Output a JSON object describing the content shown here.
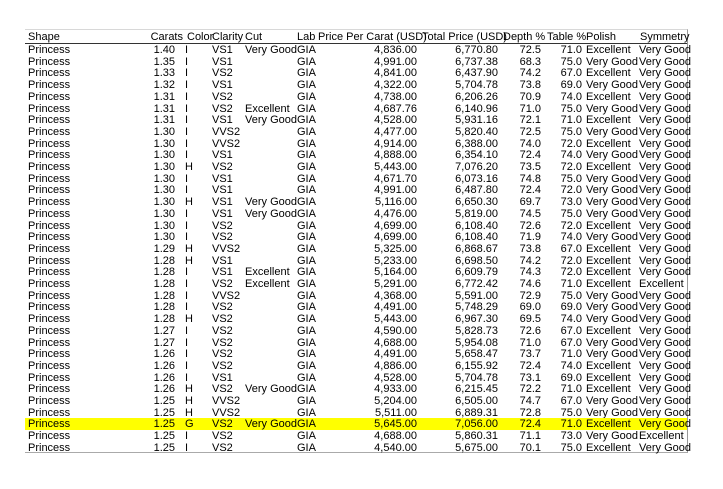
{
  "colors": {
    "highlight": "#ffff00",
    "header_rule": "#333333"
  },
  "header": {
    "shape": "Shape",
    "carats": "Carats",
    "color": "Color",
    "clarity": "Clarity",
    "cut": "Cut",
    "lab": "Lab",
    "price_per_carat": "Price Per Carat (USD)",
    "total_price": "Total Price (USD)",
    "depth": "Depth %",
    "table": "Table %",
    "polish": "Polish",
    "symmetry": "Symmetry"
  },
  "highlighted_row": 32,
  "rows": [
    [
      "Princess",
      "1.40",
      "I",
      "VS1",
      "Very Good",
      "GIA",
      "4,836.00",
      "6,770.80",
      "72.5",
      "71.0",
      "Excellent",
      "Very Good"
    ],
    [
      "Princess",
      "1.35",
      "I",
      "VS1",
      "",
      "GIA",
      "4,991.00",
      "6,737.38",
      "68.3",
      "75.0",
      "Very Good",
      "Very Good"
    ],
    [
      "Princess",
      "1.33",
      "I",
      "VS2",
      "",
      "GIA",
      "4,841.00",
      "6,437.90",
      "74.2",
      "67.0",
      "Excellent",
      "Very Good"
    ],
    [
      "Princess",
      "1.32",
      "I",
      "VS1",
      "",
      "GIA",
      "4,322.00",
      "5,704.78",
      "73.8",
      "69.0",
      "Very Good",
      "Very Good"
    ],
    [
      "Princess",
      "1.31",
      "I",
      "VS2",
      "",
      "GIA",
      "4,738.00",
      "6,206.26",
      "70.9",
      "74.0",
      "Excellent",
      "Very Good"
    ],
    [
      "Princess",
      "1.31",
      "I",
      "VS2",
      "Excellent",
      "GIA",
      "4,687.76",
      "6,140.96",
      "71.0",
      "75.0",
      "Very Good",
      "Very Good"
    ],
    [
      "Princess",
      "1.31",
      "I",
      "VS1",
      "Very Good",
      "GIA",
      "4,528.00",
      "5,931.16",
      "72.1",
      "71.0",
      "Excellent",
      "Very Good"
    ],
    [
      "Princess",
      "1.30",
      "I",
      "VVS2",
      "",
      "GIA",
      "4,477.00",
      "5,820.40",
      "72.5",
      "75.0",
      "Very Good",
      "Very Good"
    ],
    [
      "Princess",
      "1.30",
      "I",
      "VVS2",
      "",
      "GIA",
      "4,914.00",
      "6,388.00",
      "74.0",
      "72.0",
      "Excellent",
      "Very Good"
    ],
    [
      "Princess",
      "1.30",
      "I",
      "VS1",
      "",
      "GIA",
      "4,888.00",
      "6,354.10",
      "72.4",
      "74.0",
      "Very Good",
      "Very Good"
    ],
    [
      "Princess",
      "1.30",
      "H",
      "VS2",
      "",
      "GIA",
      "5,443.00",
      "7,076.20",
      "73.5",
      "72.0",
      "Excellent",
      "Very Good"
    ],
    [
      "Princess",
      "1.30",
      "I",
      "VS1",
      "",
      "GIA",
      "4,671.70",
      "6,073.16",
      "74.8",
      "75.0",
      "Very Good",
      "Very Good"
    ],
    [
      "Princess",
      "1.30",
      "I",
      "VS1",
      "",
      "GIA",
      "4,991.00",
      "6,487.80",
      "72.4",
      "72.0",
      "Very Good",
      "Very Good"
    ],
    [
      "Princess",
      "1.30",
      "H",
      "VS1",
      "Very Good",
      "GIA",
      "5,116.00",
      "6,650.30",
      "69.7",
      "73.0",
      "Very Good",
      "Very Good"
    ],
    [
      "Princess",
      "1.30",
      "I",
      "VS1",
      "Very Good",
      "GIA",
      "4,476.00",
      "5,819.00",
      "74.5",
      "75.0",
      "Very Good",
      "Very Good"
    ],
    [
      "Princess",
      "1.30",
      "I",
      "VS2",
      "",
      "GIA",
      "4,699.00",
      "6,108.40",
      "72.6",
      "72.0",
      "Excellent",
      "Very Good"
    ],
    [
      "Princess",
      "1.30",
      "I",
      "VS2",
      "",
      "GIA",
      "4,699.00",
      "6,108.40",
      "71.9",
      "74.0",
      "Very Good",
      "Very Good"
    ],
    [
      "Princess",
      "1.29",
      "H",
      "VVS2",
      "",
      "GIA",
      "5,325.00",
      "6,868.67",
      "73.8",
      "67.0",
      "Excellent",
      "Very Good"
    ],
    [
      "Princess",
      "1.28",
      "H",
      "VS1",
      "",
      "GIA",
      "5,233.00",
      "6,698.50",
      "74.2",
      "72.0",
      "Excellent",
      "Very Good"
    ],
    [
      "Princess",
      "1.28",
      "I",
      "VS1",
      "Excellent",
      "GIA",
      "5,164.00",
      "6,609.79",
      "74.3",
      "72.0",
      "Excellent",
      "Very Good"
    ],
    [
      "Princess",
      "1.28",
      "I",
      "VS2",
      "Excellent",
      "GIA",
      "5,291.00",
      "6,772.42",
      "74.6",
      "71.0",
      "Excellent",
      "Excellent"
    ],
    [
      "Princess",
      "1.28",
      "I",
      "VVS2",
      "",
      "GIA",
      "4,368.00",
      "5,591.00",
      "72.9",
      "75.0",
      "Very Good",
      "Very Good"
    ],
    [
      "Princess",
      "1.28",
      "I",
      "VS2",
      "",
      "GIA",
      "4,491.00",
      "5,748.29",
      "69.0",
      "69.0",
      "Very Good",
      "Very Good"
    ],
    [
      "Princess",
      "1.28",
      "H",
      "VS2",
      "",
      "GIA",
      "5,443.00",
      "6,967.30",
      "69.5",
      "74.0",
      "Very Good",
      "Very Good"
    ],
    [
      "Princess",
      "1.27",
      "I",
      "VS2",
      "",
      "GIA",
      "4,590.00",
      "5,828.73",
      "72.6",
      "67.0",
      "Excellent",
      "Very Good"
    ],
    [
      "Princess",
      "1.27",
      "I",
      "VS2",
      "",
      "GIA",
      "4,688.00",
      "5,954.08",
      "71.0",
      "67.0",
      "Very Good",
      "Very Good"
    ],
    [
      "Princess",
      "1.26",
      "I",
      "VS2",
      "",
      "GIA",
      "4,491.00",
      "5,658.47",
      "73.7",
      "71.0",
      "Very Good",
      "Very Good"
    ],
    [
      "Princess",
      "1.26",
      "I",
      "VS2",
      "",
      "GIA",
      "4,886.00",
      "6,155.92",
      "72.4",
      "74.0",
      "Excellent",
      "Very Good"
    ],
    [
      "Princess",
      "1.26",
      "I",
      "VS1",
      "",
      "GIA",
      "4,528.00",
      "5,704.78",
      "73.1",
      "69.0",
      "Excellent",
      "Very Good"
    ],
    [
      "Princess",
      "1.26",
      "H",
      "VS2",
      "Very Good",
      "GIA",
      "4,933.00",
      "6,215.45",
      "72.2",
      "71.0",
      "Excellent",
      "Very Good"
    ],
    [
      "Princess",
      "1.25",
      "H",
      "VVS2",
      "",
      "GIA",
      "5,204.00",
      "6,505.00",
      "74.7",
      "67.0",
      "Very Good",
      "Very Good"
    ],
    [
      "Princess",
      "1.25",
      "H",
      "VVS2",
      "",
      "GIA",
      "5,511.00",
      "6,889.31",
      "72.8",
      "75.0",
      "Very Good",
      "Very Good"
    ],
    [
      "Princess",
      "1.25",
      "G",
      "VS2",
      "Very Good",
      "GIA",
      "5,645.00",
      "7,056.00",
      "72.4",
      "71.0",
      "Excellent",
      "Very Good"
    ],
    [
      "Princess",
      "1.25",
      "I",
      "VS2",
      "",
      "GIA",
      "4,688.00",
      "5,860.31",
      "71.1",
      "73.0",
      "Very Good",
      "Excellent"
    ],
    [
      "Princess",
      "1.25",
      "I",
      "VS2",
      "",
      "GIA",
      "4,540.00",
      "5,675.00",
      "70.1",
      "75.0",
      "Excellent",
      "Very Good"
    ]
  ]
}
